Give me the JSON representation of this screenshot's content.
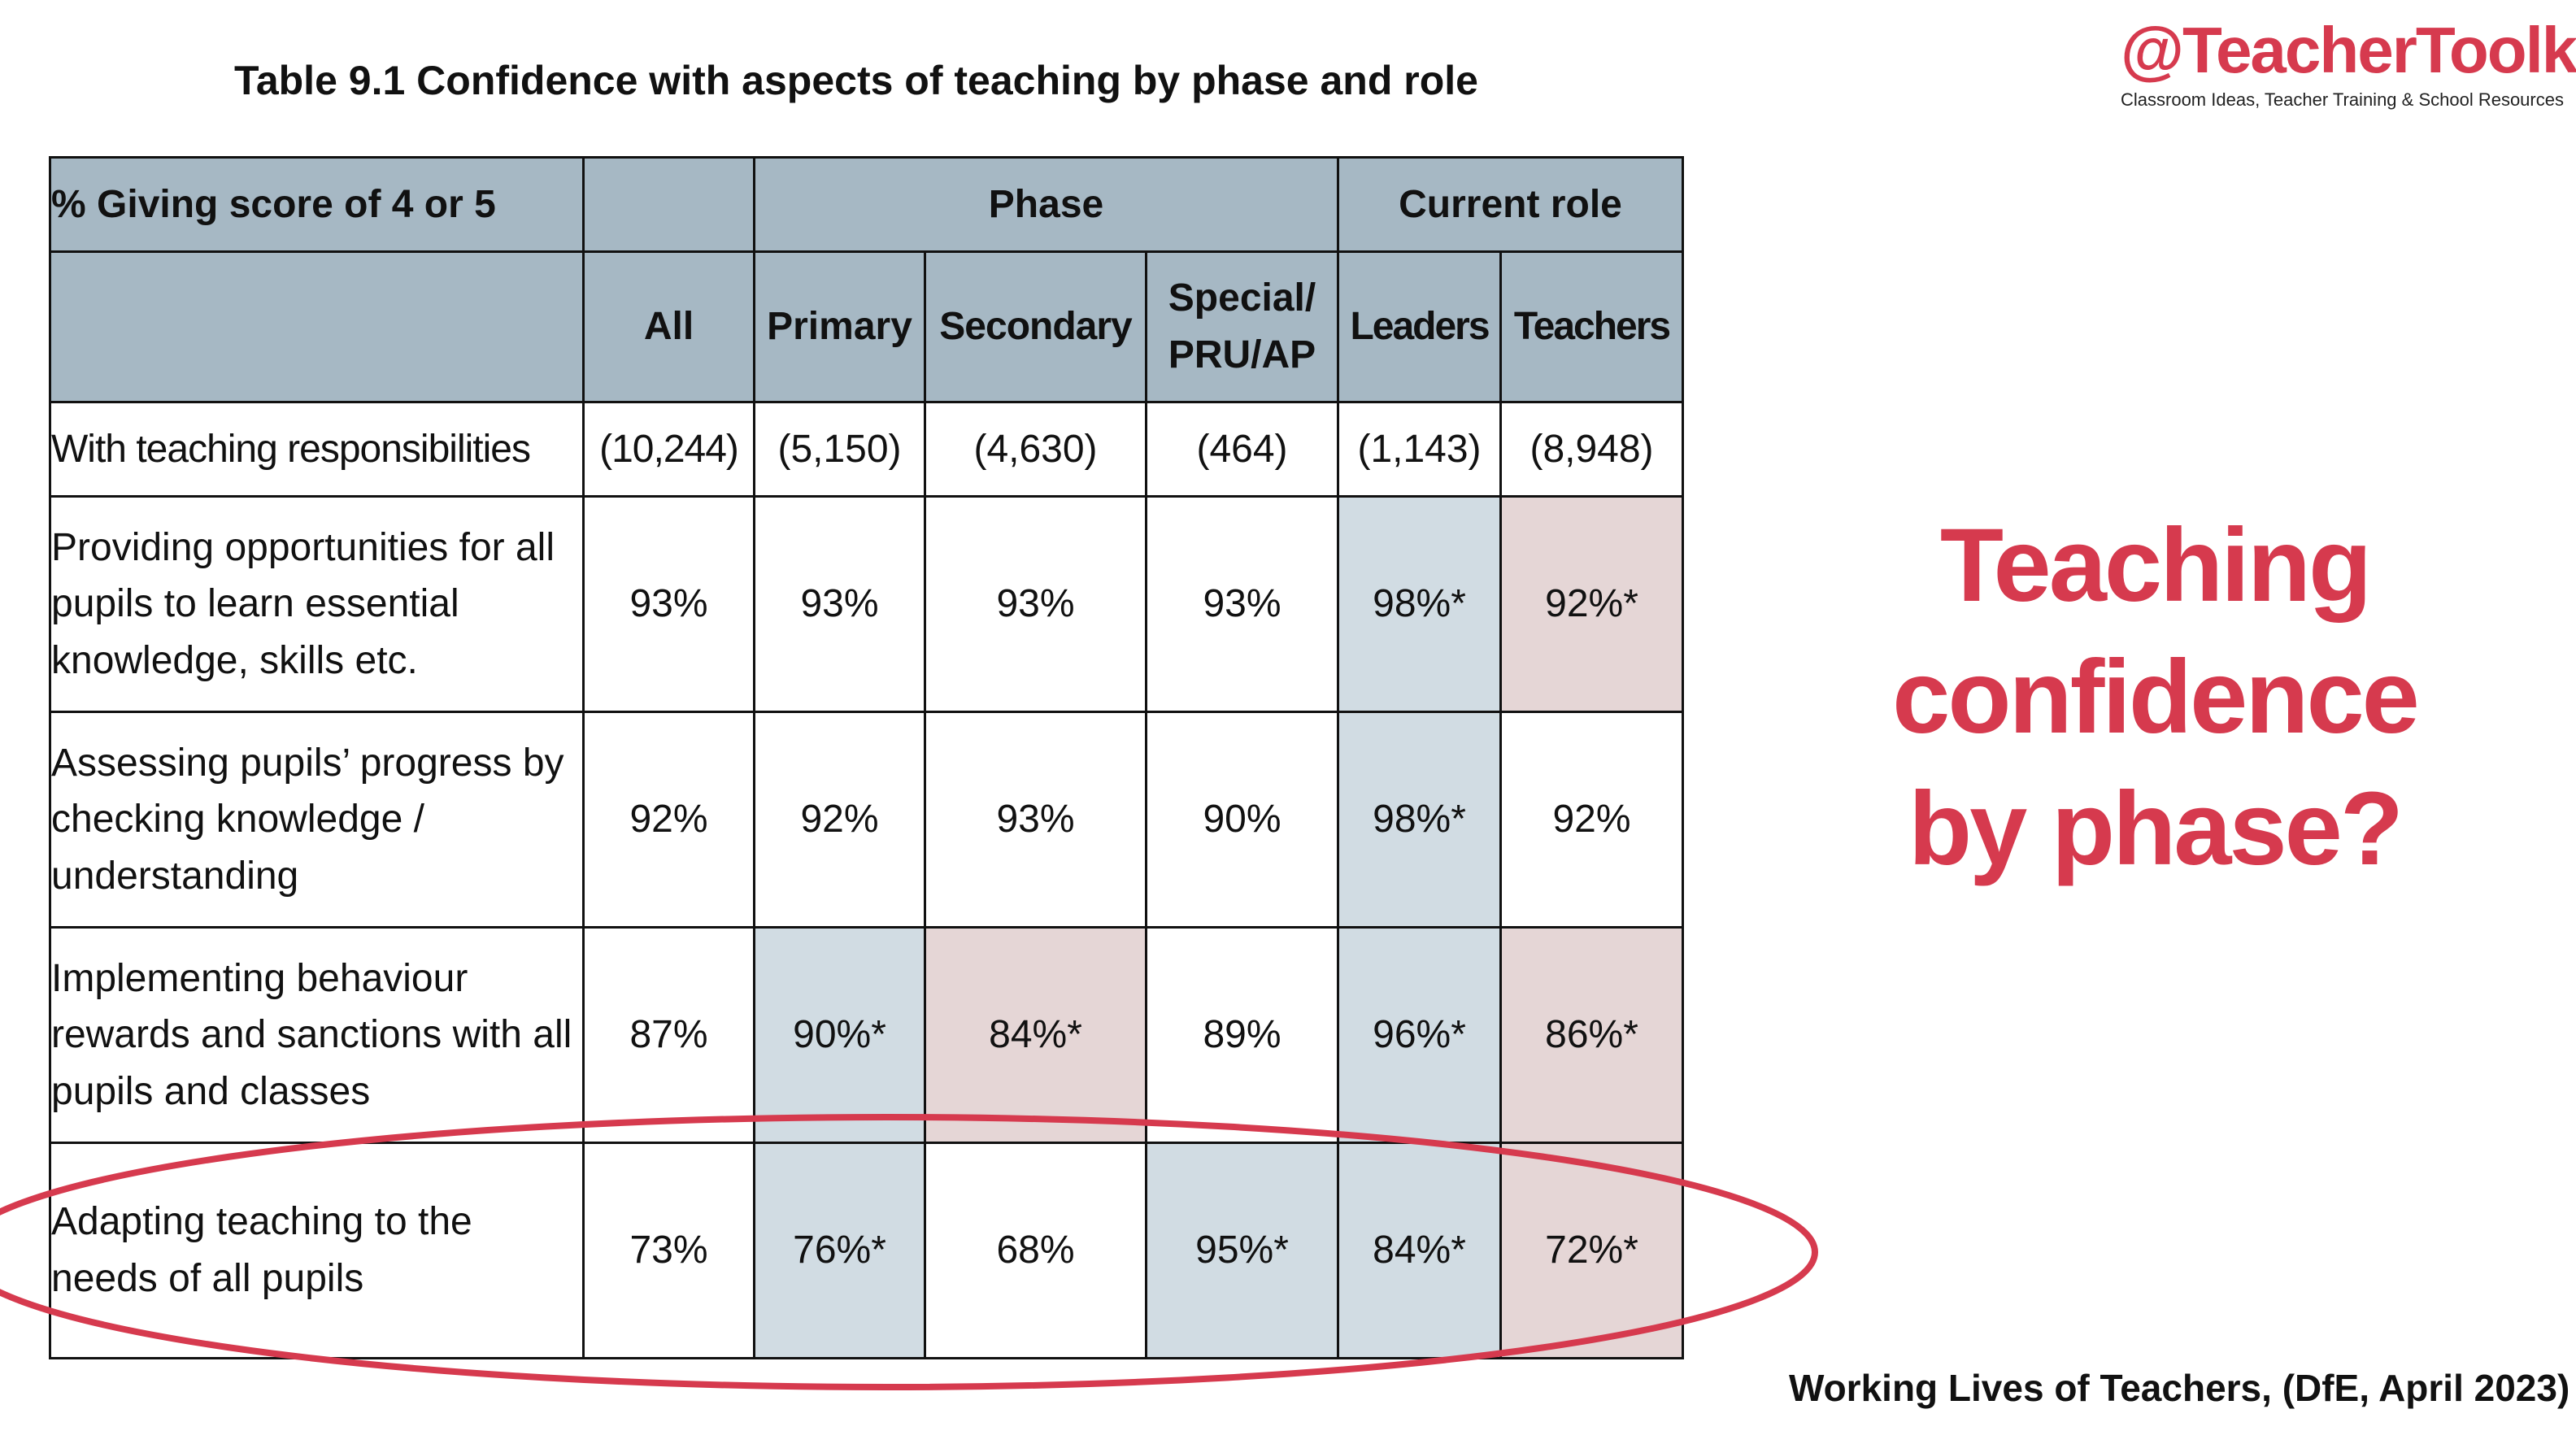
{
  "table": {
    "title": "Table 9.1 Confidence with aspects of teaching by phase and role",
    "header_row_1": {
      "label": "% Giving score of 4 or 5",
      "phase_group": "Phase",
      "role_group": "Current role"
    },
    "columns": [
      "All",
      "Primary",
      "Secondary",
      "Special/ PRU/AP",
      "Leaders",
      "Teachers"
    ],
    "base_row": {
      "label": "With teaching responsibilities",
      "values": [
        "(10,244)",
        "(5,150)",
        "(4,630)",
        "(464)",
        "(1,143)",
        "(8,948)"
      ]
    },
    "rows": [
      {
        "label": "Providing opportunities for all pupils to learn essential knowledge, skills etc.",
        "values": [
          "93%",
          "93%",
          "93%",
          "93%",
          "98%*",
          "92%*"
        ]
      },
      {
        "label": "Assessing pupils’ progress by checking knowledge / understanding",
        "values": [
          "92%",
          "92%",
          "93%",
          "90%",
          "98%*",
          "92%"
        ]
      },
      {
        "label": "Implementing behaviour rewards and sanctions with all pupils and classes",
        "values": [
          "87%",
          "90%*",
          "84%*",
          "89%",
          "96%*",
          "86%*"
        ]
      },
      {
        "label": "Adapting teaching to the needs of all pupils",
        "values": [
          "73%",
          "76%*",
          "68%",
          "95%*",
          "84%*",
          "72%*"
        ]
      }
    ]
  },
  "brand": {
    "name": "@TeacherToolkit",
    "tagline": "Classroom Ideas, Teacher Training & School Resources"
  },
  "headline": {
    "line_1": "Teaching",
    "line_2": "confidence",
    "line_3": "by phase?"
  },
  "source_credit": "Working Lives of Teachers, (DfE, April 2023)",
  "colors": {
    "accent_red": "#d63a4e",
    "header_fill": "#a6b8c4",
    "highlight_higher": "#d1dce3",
    "highlight_lower": "#e5d6d6"
  }
}
